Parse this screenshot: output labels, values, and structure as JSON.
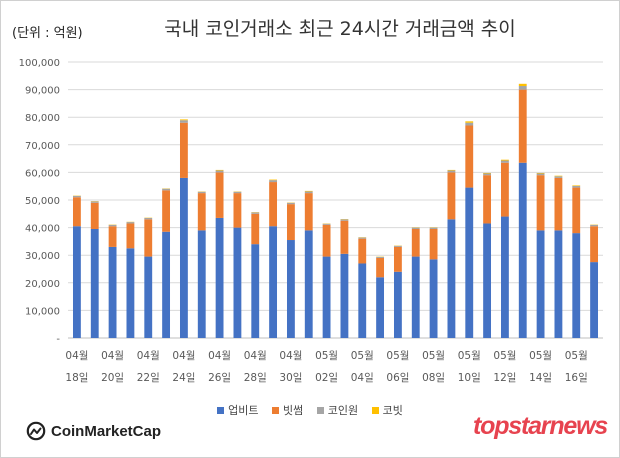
{
  "unit_label": "(단위 : 억원)",
  "chart_data": {
    "type": "bar",
    "stacked": true,
    "title": "국내 코인거래소 최근 24시간 거래금액 추이",
    "ylim": [
      0,
      100000
    ],
    "yticks": [
      "-",
      "10,000",
      "20,000",
      "30,000",
      "40,000",
      "50,000",
      "60,000",
      "70,000",
      "80,000",
      "90,000",
      "100,000"
    ],
    "grid": true,
    "legend_position": "bottom",
    "x_labels": [
      {
        "line1": "04월",
        "line2": "18일"
      },
      {
        "line1": "04월",
        "line2": "20일"
      },
      {
        "line1": "04월",
        "line2": "22일"
      },
      {
        "line1": "04월",
        "line2": "24일"
      },
      {
        "line1": "04월",
        "line2": "26일"
      },
      {
        "line1": "04월",
        "line2": "28일"
      },
      {
        "line1": "04월",
        "line2": "30일"
      },
      {
        "line1": "05월",
        "line2": "02일"
      },
      {
        "line1": "05월",
        "line2": "04일"
      },
      {
        "line1": "05월",
        "line2": "06일"
      },
      {
        "line1": "05월",
        "line2": "08일"
      },
      {
        "line1": "05월",
        "line2": "10일"
      },
      {
        "line1": "05월",
        "line2": "12일"
      },
      {
        "line1": "05월",
        "line2": "14일"
      },
      {
        "line1": "05월",
        "line2": "16일"
      }
    ],
    "series": [
      {
        "name": "업비트",
        "color": "#4472c4",
        "values": [
          40500,
          39500,
          33000,
          32500,
          29500,
          38500,
          58000,
          39000,
          43500,
          40000,
          34000,
          40500,
          35500,
          39000,
          29500,
          30500,
          27000,
          22000,
          24000,
          29500,
          28500,
          43000,
          54500,
          41500,
          44000,
          63500,
          39000,
          39000,
          38000,
          27500
        ]
      },
      {
        "name": "빗썸",
        "color": "#ed7d31",
        "values": [
          10500,
          9500,
          7500,
          9000,
          13500,
          15000,
          20000,
          13500,
          16500,
          12500,
          11000,
          16000,
          13000,
          13500,
          11500,
          12000,
          9000,
          7000,
          9000,
          10000,
          11000,
          17000,
          22500,
          17500,
          19500,
          26500,
          20000,
          19000,
          16500,
          13000
        ]
      },
      {
        "name": "코인원",
        "color": "#a5a5a5",
        "values": [
          500,
          500,
          500,
          500,
          500,
          600,
          900,
          500,
          700,
          500,
          500,
          700,
          500,
          600,
          400,
          500,
          400,
          400,
          400,
          500,
          500,
          700,
          1000,
          600,
          800,
          1300,
          600,
          600,
          600,
          500
        ]
      },
      {
        "name": "코빗",
        "color": "#ffc000",
        "values": [
          100,
          100,
          100,
          100,
          100,
          100,
          300,
          100,
          200,
          100,
          100,
          200,
          100,
          200,
          100,
          100,
          100,
          100,
          100,
          100,
          100,
          200,
          500,
          200,
          300,
          800,
          200,
          200,
          200,
          100
        ]
      }
    ]
  },
  "footer": {
    "brand": "CoinMarketCap",
    "logo_icon": "coinmarketcap-logo-icon",
    "watermark": "topstarnews"
  }
}
